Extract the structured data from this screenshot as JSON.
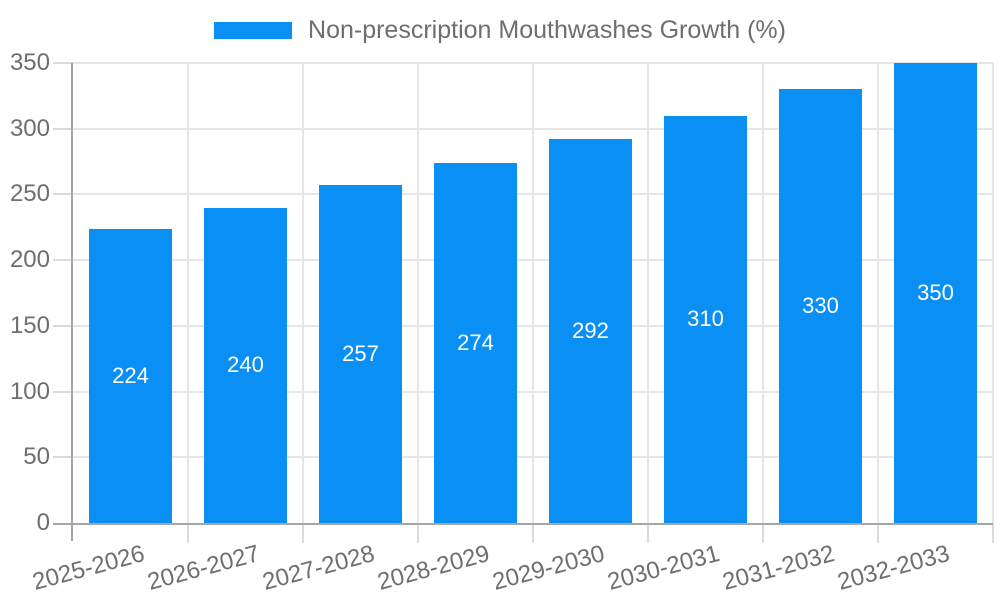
{
  "chart_data": {
    "type": "bar",
    "title": "Non-prescription Mouthwashes Growth (%)",
    "categories": [
      "2025-2026",
      "2026-2027",
      "2027-2028",
      "2028-2029",
      "2029-2030",
      "2030-2031",
      "2031-2032",
      "2032-2033"
    ],
    "values": [
      224,
      240,
      257,
      274,
      292,
      310,
      330,
      350
    ],
    "xlabel": "",
    "ylabel": "",
    "ylim": [
      0,
      350
    ],
    "yticks": [
      0,
      50,
      100,
      150,
      200,
      250,
      300,
      350
    ],
    "grid": true,
    "legend_position": "top",
    "bar_color": "#0A90F5",
    "value_label_color": "#FFFFFF",
    "axis_color": "#A6A6A6",
    "grid_color": "#E6E6E6",
    "tick_color": "#DBDBDB",
    "text_color": "#6E6E6E"
  }
}
